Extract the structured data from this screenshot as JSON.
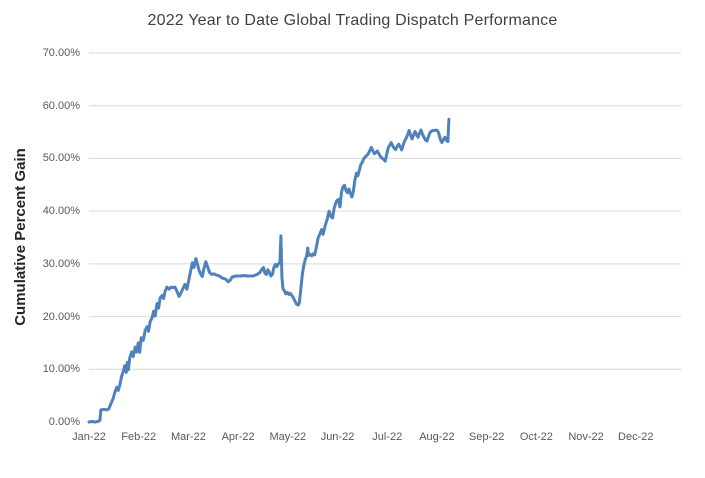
{
  "chart": {
    "title": "2022 Year to Date Global Trading Dispatch Performance",
    "y_axis_title": "Cumulative Percent Gain"
  },
  "colors": {
    "background": "#FFFFFF",
    "line": "#4F81BD",
    "gridline": "#D9D9D9",
    "tick_text": "#595959",
    "title_text": "#404040",
    "axis_title_text": "#262626"
  },
  "chart_data": {
    "type": "line",
    "title": "2022 Year to Date Global Trading Dispatch Performance",
    "xlabel": "",
    "ylabel": "Cumulative Percent Gain",
    "legend": "none",
    "grid": "horizontal gridlines at 10%..70%, no gridline or axis line at 0%",
    "ylim": [
      0,
      70
    ],
    "y_tick_values": [
      0,
      10,
      20,
      30,
      40,
      50,
      60,
      70
    ],
    "y_tick_labels": [
      "0.00%",
      "10.00%",
      "20.00%",
      "30.00%",
      "40.00%",
      "50.00%",
      "60.00%",
      "70.00%"
    ],
    "x_tick_labels": [
      "Jan-22",
      "Feb-22",
      "Mar-22",
      "Apr-22",
      "May-22",
      "Jun-22",
      "Jul-22",
      "Aug-22",
      "Sep-22",
      "Oct-22",
      "Nov-22",
      "Dec-22"
    ],
    "xlim_months": [
      0,
      11.91
    ],
    "x_unit": "months after Jan-22 tick (daily cumulative % gain series, ends ~Aug 8 2022 at ~57.4%)",
    "series": [
      {
        "name": "Cumulative Percent Gain",
        "color": "#4F81BD",
        "points_month_pct": [
          [
            0.0,
            0.0
          ],
          [
            0.06,
            0.1
          ],
          [
            0.12,
            0.0
          ],
          [
            0.18,
            0.1
          ],
          [
            0.22,
            0.3
          ],
          [
            0.24,
            2.3
          ],
          [
            0.3,
            2.4
          ],
          [
            0.36,
            2.3
          ],
          [
            0.4,
            2.5
          ],
          [
            0.44,
            3.5
          ],
          [
            0.48,
            4.3
          ],
          [
            0.52,
            5.6
          ],
          [
            0.56,
            6.6
          ],
          [
            0.59,
            6.0
          ],
          [
            0.62,
            7.0
          ],
          [
            0.66,
            8.8
          ],
          [
            0.69,
            9.6
          ],
          [
            0.72,
            10.7
          ],
          [
            0.75,
            9.4
          ],
          [
            0.77,
            11.3
          ],
          [
            0.79,
            9.9
          ],
          [
            0.82,
            12.2
          ],
          [
            0.86,
            13.3
          ],
          [
            0.89,
            12.4
          ],
          [
            0.93,
            14.2
          ],
          [
            0.96,
            13.3
          ],
          [
            0.99,
            15.0
          ],
          [
            1.02,
            13.2
          ],
          [
            1.05,
            16.0
          ],
          [
            1.09,
            15.5
          ],
          [
            1.13,
            17.4
          ],
          [
            1.17,
            18.1
          ],
          [
            1.2,
            17.2
          ],
          [
            1.23,
            19.0
          ],
          [
            1.27,
            19.8
          ],
          [
            1.3,
            21.0
          ],
          [
            1.33,
            20.1
          ],
          [
            1.37,
            22.5
          ],
          [
            1.4,
            21.6
          ],
          [
            1.43,
            23.5
          ],
          [
            1.47,
            24.0
          ],
          [
            1.5,
            23.4
          ],
          [
            1.53,
            24.8
          ],
          [
            1.57,
            25.6
          ],
          [
            1.61,
            25.2
          ],
          [
            1.65,
            25.6
          ],
          [
            1.69,
            25.5
          ],
          [
            1.73,
            25.6
          ],
          [
            1.77,
            24.8
          ],
          [
            1.81,
            23.8
          ],
          [
            1.85,
            24.5
          ],
          [
            1.89,
            25.3
          ],
          [
            1.93,
            26.1
          ],
          [
            1.97,
            25.2
          ],
          [
            2.01,
            27.0
          ],
          [
            2.05,
            28.9
          ],
          [
            2.08,
            30.2
          ],
          [
            2.11,
            29.3
          ],
          [
            2.15,
            31.0
          ],
          [
            2.18,
            30.0
          ],
          [
            2.21,
            28.9
          ],
          [
            2.25,
            28.0
          ],
          [
            2.28,
            27.6
          ],
          [
            2.31,
            29.0
          ],
          [
            2.35,
            30.4
          ],
          [
            2.39,
            29.3
          ],
          [
            2.43,
            28.3
          ],
          [
            2.47,
            28.0
          ],
          [
            2.52,
            28.1
          ],
          [
            2.56,
            27.9
          ],
          [
            2.6,
            27.8
          ],
          [
            2.64,
            27.6
          ],
          [
            2.68,
            27.3
          ],
          [
            2.72,
            27.2
          ],
          [
            2.76,
            27.0
          ],
          [
            2.8,
            26.6
          ],
          [
            2.84,
            26.9
          ],
          [
            2.88,
            27.5
          ],
          [
            2.92,
            27.6
          ],
          [
            2.96,
            27.7
          ],
          [
            3.0,
            27.7
          ],
          [
            3.06,
            27.7
          ],
          [
            3.12,
            27.8
          ],
          [
            3.18,
            27.7
          ],
          [
            3.24,
            27.7
          ],
          [
            3.3,
            27.7
          ],
          [
            3.36,
            27.9
          ],
          [
            3.4,
            28.1
          ],
          [
            3.44,
            28.4
          ],
          [
            3.48,
            29.0
          ],
          [
            3.51,
            29.3
          ],
          [
            3.54,
            28.2
          ],
          [
            3.57,
            28.0
          ],
          [
            3.6,
            28.9
          ],
          [
            3.63,
            28.4
          ],
          [
            3.66,
            27.7
          ],
          [
            3.69,
            28.0
          ],
          [
            3.72,
            29.3
          ],
          [
            3.75,
            29.9
          ],
          [
            3.78,
            29.5
          ],
          [
            3.81,
            30.0
          ],
          [
            3.84,
            30.3
          ],
          [
            3.86,
            35.3
          ],
          [
            3.88,
            27.5
          ],
          [
            3.9,
            25.4
          ],
          [
            3.93,
            24.9
          ],
          [
            3.96,
            24.3
          ],
          [
            3.99,
            24.6
          ],
          [
            4.02,
            24.2
          ],
          [
            4.05,
            24.4
          ],
          [
            4.08,
            24.0
          ],
          [
            4.11,
            23.6
          ],
          [
            4.14,
            23.0
          ],
          [
            4.17,
            22.4
          ],
          [
            4.21,
            22.2
          ],
          [
            4.23,
            22.6
          ],
          [
            4.26,
            25.0
          ],
          [
            4.29,
            27.8
          ],
          [
            4.32,
            29.6
          ],
          [
            4.35,
            30.8
          ],
          [
            4.38,
            31.5
          ],
          [
            4.4,
            33.0
          ],
          [
            4.42,
            31.6
          ],
          [
            4.45,
            31.8
          ],
          [
            4.48,
            31.5
          ],
          [
            4.51,
            31.9
          ],
          [
            4.54,
            31.7
          ],
          [
            4.57,
            33.0
          ],
          [
            4.61,
            34.9
          ],
          [
            4.65,
            35.8
          ],
          [
            4.68,
            36.5
          ],
          [
            4.71,
            35.6
          ],
          [
            4.75,
            37.2
          ],
          [
            4.79,
            38.4
          ],
          [
            4.83,
            40.0
          ],
          [
            4.87,
            38.9
          ],
          [
            4.9,
            38.7
          ],
          [
            4.93,
            40.5
          ],
          [
            4.96,
            41.4
          ],
          [
            4.99,
            42.0
          ],
          [
            5.02,
            42.2
          ],
          [
            5.05,
            40.8
          ],
          [
            5.08,
            43.6
          ],
          [
            5.11,
            44.6
          ],
          [
            5.14,
            44.9
          ],
          [
            5.17,
            43.9
          ],
          [
            5.2,
            43.5
          ],
          [
            5.23,
            44.2
          ],
          [
            5.26,
            43.3
          ],
          [
            5.29,
            42.7
          ],
          [
            5.32,
            43.8
          ],
          [
            5.35,
            45.9
          ],
          [
            5.38,
            47.2
          ],
          [
            5.41,
            46.7
          ],
          [
            5.44,
            47.8
          ],
          [
            5.47,
            48.9
          ],
          [
            5.5,
            49.3
          ],
          [
            5.53,
            50.0
          ],
          [
            5.56,
            50.3
          ],
          [
            5.59,
            50.6
          ],
          [
            5.62,
            50.9
          ],
          [
            5.65,
            51.5
          ],
          [
            5.68,
            52.1
          ],
          [
            5.71,
            51.5
          ],
          [
            5.74,
            50.9
          ],
          [
            5.77,
            51.1
          ],
          [
            5.8,
            51.4
          ],
          [
            5.83,
            50.9
          ],
          [
            5.86,
            50.4
          ],
          [
            5.89,
            50.1
          ],
          [
            5.93,
            49.8
          ],
          [
            5.96,
            49.5
          ],
          [
            5.99,
            50.8
          ],
          [
            6.02,
            52.0
          ],
          [
            6.05,
            52.5
          ],
          [
            6.08,
            53.0
          ],
          [
            6.11,
            52.4
          ],
          [
            6.14,
            51.9
          ],
          [
            6.17,
            51.7
          ],
          [
            6.2,
            52.3
          ],
          [
            6.23,
            52.7
          ],
          [
            6.26,
            52.2
          ],
          [
            6.29,
            51.6
          ],
          [
            6.32,
            52.5
          ],
          [
            6.35,
            53.3
          ],
          [
            6.38,
            53.8
          ],
          [
            6.41,
            54.5
          ],
          [
            6.44,
            55.3
          ],
          [
            6.47,
            54.4
          ],
          [
            6.5,
            53.7
          ],
          [
            6.53,
            54.4
          ],
          [
            6.56,
            55.1
          ],
          [
            6.59,
            54.5
          ],
          [
            6.62,
            54.0
          ],
          [
            6.65,
            54.8
          ],
          [
            6.68,
            55.4
          ],
          [
            6.71,
            54.6
          ],
          [
            6.74,
            54.0
          ],
          [
            6.77,
            53.5
          ],
          [
            6.8,
            53.3
          ],
          [
            6.83,
            54.2
          ],
          [
            6.86,
            54.9
          ],
          [
            6.89,
            55.2
          ],
          [
            6.92,
            55.3
          ],
          [
            6.95,
            55.3
          ],
          [
            6.98,
            55.4
          ],
          [
            7.01,
            55.3
          ],
          [
            7.04,
            54.7
          ],
          [
            7.07,
            53.6
          ],
          [
            7.1,
            53.0
          ],
          [
            7.13,
            53.6
          ],
          [
            7.16,
            54.0
          ],
          [
            7.19,
            53.4
          ],
          [
            7.22,
            53.2
          ],
          [
            7.24,
            57.4
          ]
        ]
      }
    ]
  }
}
